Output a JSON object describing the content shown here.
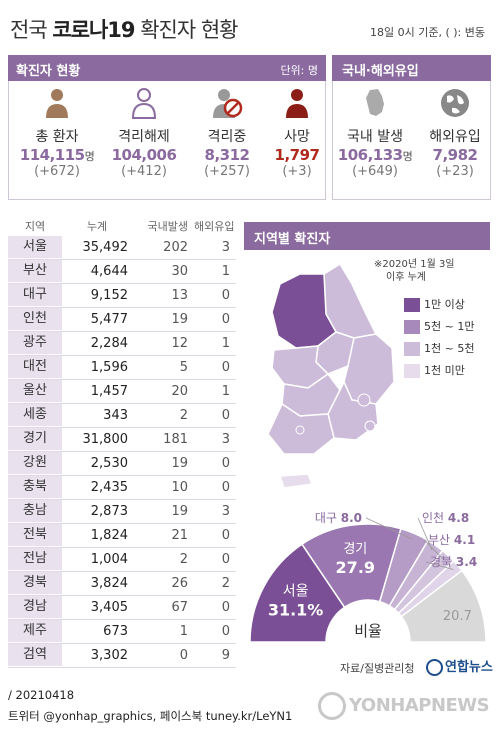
{
  "header": {
    "title_normal": "전국",
    "title_bold": "코로나19",
    "title_rest": "확진자 현황",
    "note": "18일 0시 기준, ( ): 변동"
  },
  "confirmed_panel": {
    "label": "확진자 현황",
    "unit": "단위: 명",
    "stats": [
      {
        "label": "총 환자",
        "value": "114,115",
        "suffix": "명",
        "change": "(+672)",
        "icon": "person-icon"
      },
      {
        "label": "격리해제",
        "value": "104,006",
        "suffix": "",
        "change": "(+412)",
        "icon": "person-outline-icon"
      },
      {
        "label": "격리중",
        "value": "8,312",
        "suffix": "",
        "change": "(+257)",
        "icon": "person-prohibited-icon"
      },
      {
        "label": "사망",
        "value": "1,797",
        "suffix": "",
        "change": "(+3)",
        "icon": "person-dark-icon"
      }
    ]
  },
  "origin_panel": {
    "label": "국내·해외유입",
    "stats": [
      {
        "label": "국내 발생",
        "value": "106,133",
        "suffix": "명",
        "change": "(+649)",
        "icon": "korea-map-icon"
      },
      {
        "label": "해외유입",
        "value": "7,982",
        "suffix": "",
        "change": "(+23)",
        "icon": "globe-icon"
      }
    ]
  },
  "colors": {
    "accent": "#8a6a9f",
    "dark": "#6b4a80",
    "death": "#b02a1e"
  },
  "table": {
    "headers": [
      "지역",
      "누계",
      "국내발생",
      "해외유입"
    ],
    "rows": [
      {
        "name": "서울",
        "total": "35,492",
        "domestic": "202",
        "imported": "3"
      },
      {
        "name": "부산",
        "total": "4,644",
        "domestic": "30",
        "imported": "1"
      },
      {
        "name": "대구",
        "total": "9,152",
        "domestic": "13",
        "imported": "0"
      },
      {
        "name": "인천",
        "total": "5,477",
        "domestic": "19",
        "imported": "0"
      },
      {
        "name": "광주",
        "total": "2,284",
        "domestic": "12",
        "imported": "1"
      },
      {
        "name": "대전",
        "total": "1,596",
        "domestic": "5",
        "imported": "0"
      },
      {
        "name": "울산",
        "total": "1,457",
        "domestic": "20",
        "imported": "1"
      },
      {
        "name": "세종",
        "total": "343",
        "domestic": "2",
        "imported": "0"
      },
      {
        "name": "경기",
        "total": "31,800",
        "domestic": "181",
        "imported": "3"
      },
      {
        "name": "강원",
        "total": "2,530",
        "domestic": "19",
        "imported": "0"
      },
      {
        "name": "충북",
        "total": "2,435",
        "domestic": "10",
        "imported": "0"
      },
      {
        "name": "충남",
        "total": "2,873",
        "domestic": "19",
        "imported": "3"
      },
      {
        "name": "전북",
        "total": "1,824",
        "domestic": "21",
        "imported": "0"
      },
      {
        "name": "전남",
        "total": "1,004",
        "domestic": "2",
        "imported": "0"
      },
      {
        "name": "경북",
        "total": "3,824",
        "domestic": "26",
        "imported": "2"
      },
      {
        "name": "경남",
        "total": "3,405",
        "domestic": "67",
        "imported": "0"
      },
      {
        "name": "제주",
        "total": "673",
        "domestic": "1",
        "imported": "0"
      },
      {
        "name": "검역",
        "total": "3,302",
        "domestic": "0",
        "imported": "9"
      }
    ]
  },
  "map": {
    "label": "지역별 확진자",
    "note_line1": "※2020년 1월 3일",
    "note_line2": "이후 누계",
    "legend": [
      {
        "label": "1만 이상",
        "color": "#7a4f95"
      },
      {
        "label": "5천 ~ 1만",
        "color": "#a889bc"
      },
      {
        "label": "1천 ~ 5천",
        "color": "#cdbcd9"
      },
      {
        "label": "1천 미만",
        "color": "#e6dcec"
      }
    ]
  },
  "chart_data": {
    "type": "pie",
    "title": "비율",
    "unit": "%",
    "slices": [
      {
        "label": "서울",
        "value": 31.1,
        "display": "31.1%",
        "color": "#7a4f95"
      },
      {
        "label": "경기",
        "value": 27.9,
        "display": "27.9",
        "color": "#9a77b0"
      },
      {
        "label": "대구",
        "value": 8.0,
        "display": "8.0",
        "color": "#b59cc6"
      },
      {
        "label": "인천",
        "value": 4.8,
        "display": "4.8",
        "color": "#c7b3d4"
      },
      {
        "label": "부산",
        "value": 4.1,
        "display": "4.1",
        "color": "#d4c5de"
      },
      {
        "label": "경북",
        "value": 3.4,
        "display": "3.4",
        "color": "#e0d5e8"
      },
      {
        "label": "",
        "value": 20.7,
        "display": "20.7",
        "color": "#d9d9d9"
      }
    ]
  },
  "footer": {
    "source": "자료/질병관리청",
    "brand": "연합뉴스",
    "date": "/ 20210418",
    "social": "트위터 @yonhap_graphics, 페이스북 tuney.kr/LeYN1",
    "watermark": "YONHAPNEWS"
  }
}
